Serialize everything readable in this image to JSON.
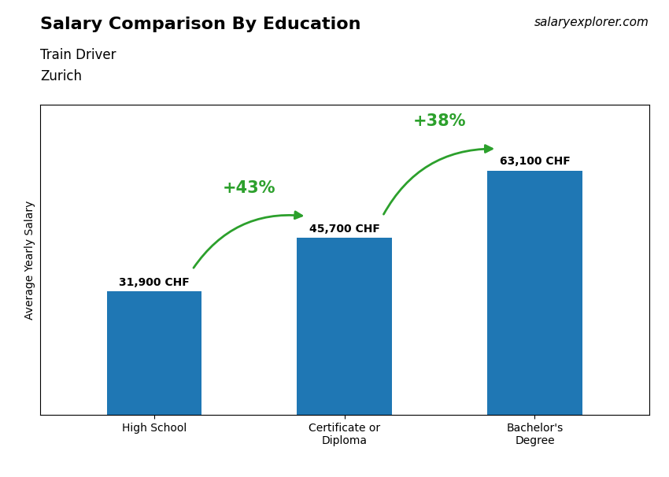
{
  "chart_data": {
    "type": "bar",
    "title": "Salary Comparison By Education",
    "subtitle": [
      "Train Driver",
      "Zurich"
    ],
    "ylabel": "Average Yearly Salary",
    "categories": [
      "High School",
      "Certificate or\nDiploma",
      "Bachelor's\nDegree"
    ],
    "values": [
      31900,
      45700,
      63100
    ],
    "value_labels": [
      "31,900 CHF",
      "45,700 CHF",
      "63,100 CHF"
    ],
    "data_labels": true,
    "ylim": [
      0,
      80000
    ],
    "tick_labels": "x",
    "grid": false,
    "annotations": [
      {
        "text": "+43%",
        "from": "High School",
        "to": "Certificate or\nDiploma"
      },
      {
        "text": "+38%",
        "from": "Certificate or\nDiploma",
        "to": "Bachelor's\nDegree"
      },
      {
        "text": "salaryexplorer.com"
      }
    ]
  }
}
